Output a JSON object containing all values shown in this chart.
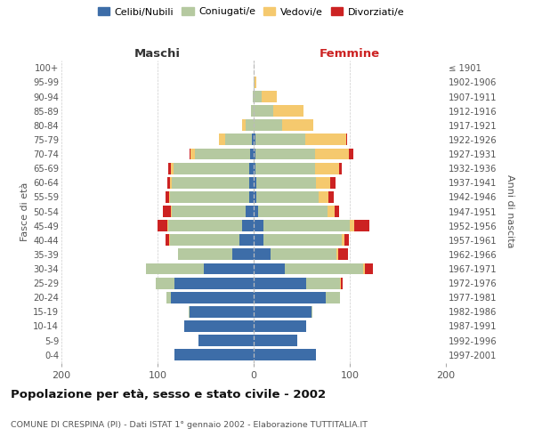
{
  "age_groups": [
    "0-4",
    "5-9",
    "10-14",
    "15-19",
    "20-24",
    "25-29",
    "30-34",
    "35-39",
    "40-44",
    "45-49",
    "50-54",
    "55-59",
    "60-64",
    "65-69",
    "70-74",
    "75-79",
    "80-84",
    "85-89",
    "90-94",
    "95-99",
    "100+"
  ],
  "birth_years": [
    "1997-2001",
    "1992-1996",
    "1987-1991",
    "1982-1986",
    "1977-1981",
    "1972-1976",
    "1967-1971",
    "1962-1966",
    "1957-1961",
    "1952-1956",
    "1947-1951",
    "1942-1946",
    "1937-1941",
    "1932-1936",
    "1927-1931",
    "1922-1926",
    "1917-1921",
    "1912-1916",
    "1907-1911",
    "1902-1906",
    "≤ 1901"
  ],
  "maschi": {
    "celibe": [
      82,
      57,
      72,
      67,
      86,
      82,
      52,
      22,
      15,
      12,
      8,
      5,
      5,
      5,
      4,
      2,
      0,
      0,
      0,
      0,
      0
    ],
    "coniugato": [
      0,
      0,
      0,
      1,
      5,
      20,
      60,
      57,
      72,
      77,
      77,
      82,
      80,
      78,
      57,
      28,
      8,
      3,
      1,
      0,
      0
    ],
    "vedovo": [
      0,
      0,
      0,
      0,
      0,
      0,
      0,
      0,
      1,
      1,
      1,
      1,
      2,
      3,
      5,
      6,
      4,
      0,
      0,
      0,
      0
    ],
    "divorziato": [
      0,
      0,
      0,
      0,
      0,
      0,
      0,
      0,
      4,
      10,
      8,
      4,
      3,
      3,
      1,
      0,
      0,
      0,
      0,
      0,
      0
    ]
  },
  "femmine": {
    "nubile": [
      65,
      45,
      55,
      60,
      75,
      55,
      32,
      18,
      10,
      10,
      5,
      3,
      3,
      2,
      2,
      2,
      0,
      0,
      0,
      0,
      0
    ],
    "coniugata": [
      0,
      0,
      0,
      1,
      15,
      35,
      82,
      68,
      82,
      90,
      72,
      65,
      62,
      62,
      62,
      52,
      30,
      20,
      8,
      1,
      0
    ],
    "vedova": [
      0,
      0,
      0,
      0,
      0,
      1,
      2,
      2,
      2,
      5,
      7,
      10,
      15,
      25,
      35,
      42,
      32,
      32,
      16,
      2,
      0
    ],
    "divorziata": [
      0,
      0,
      0,
      0,
      0,
      2,
      8,
      10,
      5,
      15,
      5,
      5,
      5,
      3,
      5,
      1,
      0,
      0,
      0,
      0,
      0
    ]
  },
  "colors": {
    "celibe": "#3d6da8",
    "coniugato": "#b5c9a0",
    "vedovo": "#f5c96e",
    "divorziato": "#cc2222"
  },
  "title": "Popolazione per età, sesso e stato civile - 2002",
  "subtitle": "COMUNE DI CRESPINA (PI) - Dati ISTAT 1° gennaio 2002 - Elaborazione TUTTITALIA.IT",
  "label_maschi": "Maschi",
  "label_femmine": "Femmine",
  "ylabel_left": "Fasce di età",
  "ylabel_right": "Anni di nascita",
  "xlim": 200,
  "legend_labels": [
    "Celibi/Nubili",
    "Coniugati/e",
    "Vedovi/e",
    "Divorziati/e"
  ]
}
